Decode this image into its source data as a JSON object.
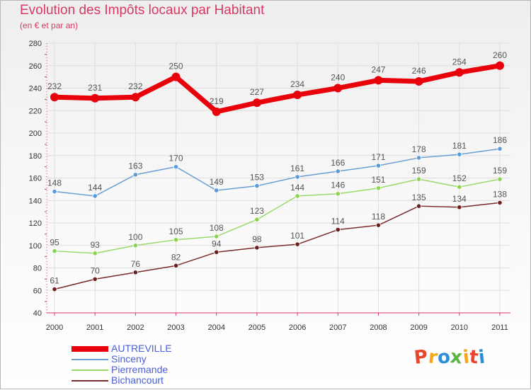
{
  "header": {
    "title": "Evolution des Impôts locaux par Habitant",
    "subtitle": "(en € et par an)"
  },
  "logo": {
    "text": "Proxiti",
    "letters": [
      {
        "ch": "P",
        "color": "#e8452c"
      },
      {
        "ch": "r",
        "color": "#f6a71b"
      },
      {
        "ch": "o",
        "color": "#2c8fd6"
      },
      {
        "ch": "x",
        "color": "#5ab543"
      },
      {
        "ch": "i",
        "color": "#f6a71b"
      },
      {
        "ch": "t",
        "color": "#e8452c"
      },
      {
        "ch": "i",
        "color": "#2c8fd6"
      }
    ]
  },
  "chart_data": {
    "type": "line",
    "title": "Evolution des Impôts locaux par Habitant",
    "subtitle": "(en € et par an)",
    "x": [
      "2000",
      "2001",
      "2002",
      "2003",
      "2004",
      "2005",
      "2006",
      "2007",
      "2008",
      "2009",
      "2010",
      "2011"
    ],
    "yticks": [
      40,
      60,
      80,
      100,
      120,
      140,
      160,
      180,
      200,
      220,
      240,
      260,
      280
    ],
    "ylim": [
      40,
      280
    ],
    "grid": true,
    "legend_position": "bottom-left",
    "series": [
      {
        "name": "AUTREVILLE",
        "color": "#e8000b",
        "marker": "#e8000b",
        "label_color": "#555555",
        "thick": true,
        "values": [
          232,
          231,
          232,
          250,
          219,
          227,
          234,
          240,
          247,
          246,
          254,
          260
        ]
      },
      {
        "name": "Sinceny",
        "color": "#6a9fd4",
        "marker": "#5a9ad8",
        "label_color": "#555555",
        "thick": false,
        "values": [
          148,
          144,
          163,
          170,
          149,
          153,
          161,
          166,
          171,
          178,
          181,
          186
        ]
      },
      {
        "name": "Pierremande",
        "color": "#9ad86a",
        "marker": "#8bd452",
        "label_color": "#555555",
        "thick": false,
        "values": [
          95,
          93,
          100,
          105,
          108,
          123,
          144,
          146,
          151,
          159,
          152,
          159
        ]
      },
      {
        "name": "Bichancourt",
        "color": "#7a2a2a",
        "marker": "#6b1f1f",
        "label_color": "#555555",
        "thick": false,
        "values": [
          61,
          70,
          76,
          82,
          94,
          98,
          101,
          114,
          118,
          135,
          134,
          138
        ]
      }
    ]
  },
  "legend_colors": {
    "text": "#4b5fd6"
  }
}
